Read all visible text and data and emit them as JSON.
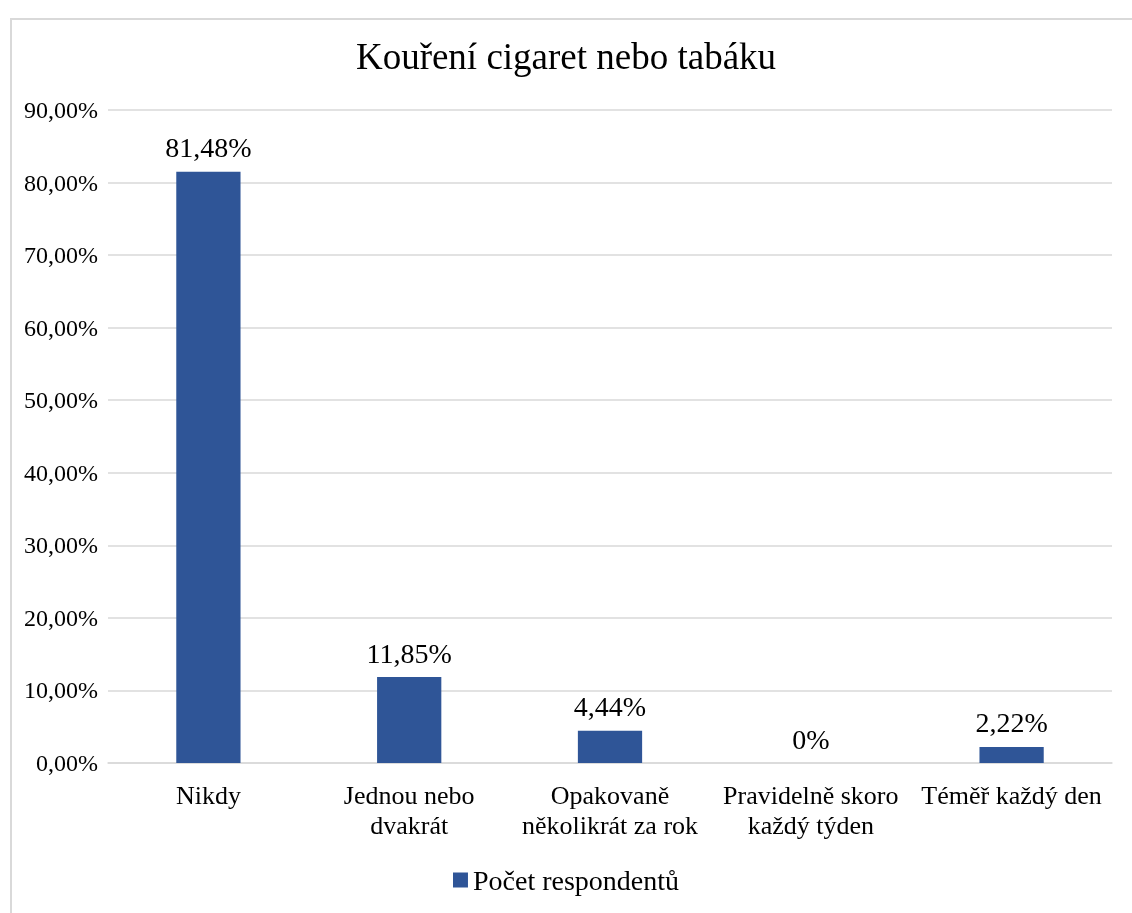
{
  "chart_data": {
    "type": "bar",
    "title": "Kouření cigaret nebo tabáku",
    "categories": [
      "Nikdy",
      "Jednou nebo dvakrát",
      "Opakovaně několikrát za rok",
      "Pravidelně skoro každý týden",
      "Téměř každý den"
    ],
    "series": [
      {
        "name": "Počet respondentů",
        "color": "#2f5597",
        "values": [
          81.48,
          11.85,
          4.44,
          0,
          2.22
        ],
        "value_labels": [
          "81,48%",
          "11,85%",
          "4,44%",
          "0%",
          "2,22%"
        ]
      }
    ],
    "ylim": [
      0,
      90
    ],
    "yticks": [
      {
        "value": 0,
        "label": "0,00%"
      },
      {
        "value": 10,
        "label": "10,00%"
      },
      {
        "value": 20,
        "label": "20,00%"
      },
      {
        "value": 30,
        "label": "30,00%"
      },
      {
        "value": 40,
        "label": "40,00%"
      },
      {
        "value": 50,
        "label": "50,00%"
      },
      {
        "value": 60,
        "label": "60,00%"
      },
      {
        "value": 70,
        "label": "70,00%"
      },
      {
        "value": 80,
        "label": "80,00%"
      },
      {
        "value": 90,
        "label": "90,00%"
      }
    ],
    "grid": "y",
    "legend": "bottom"
  }
}
